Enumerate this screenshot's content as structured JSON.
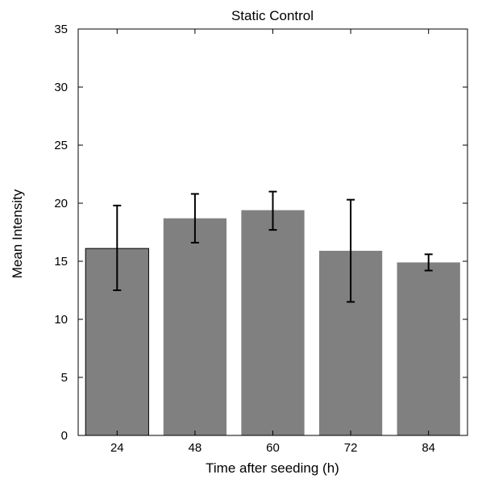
{
  "chart_data": {
    "type": "bar",
    "title": "Static Control",
    "xlabel": "Time after seeding (h)",
    "ylabel": "Mean Intensity",
    "categories": [
      "24",
      "48",
      "60",
      "72",
      "84"
    ],
    "values": [
      16.1,
      18.7,
      19.4,
      15.9,
      14.9
    ],
    "error_low": [
      12.5,
      16.6,
      17.7,
      11.5,
      14.2
    ],
    "error_high": [
      19.8,
      20.8,
      21.0,
      20.3,
      15.6
    ],
    "ylim": [
      0,
      35
    ],
    "yticks": [
      "0",
      "5",
      "10",
      "15",
      "20",
      "25",
      "30",
      "35"
    ],
    "grid": false,
    "bar_color": "#808080"
  }
}
